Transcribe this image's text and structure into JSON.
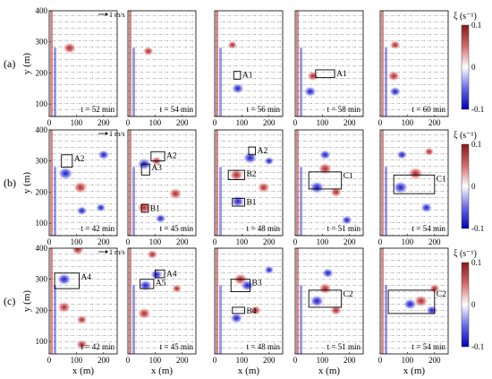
{
  "figure": {
    "row_labels": [
      "(a)",
      "(b)",
      "(c)"
    ],
    "colorbar": {
      "label": "ξ (s⁻¹)",
      "ticks": [
        "0.1",
        "0",
        "-0.1"
      ],
      "min": -0.1,
      "max": 0.1,
      "colors": {
        "positive": "#a8202a",
        "zero": "#ffffff",
        "negative": "#1414c8"
      }
    },
    "scale_label": "1 m/s"
  },
  "chart_data": [
    {
      "type": "heatmap",
      "row": "(a)",
      "ylabel": "y (m)",
      "xlabel": "",
      "x_ticks": [
        "0",
        "100",
        "200"
      ],
      "y_ticks": [
        "100",
        "200",
        "300",
        "400"
      ],
      "xlim": [
        0,
        250
      ],
      "ylim": [
        60,
        400
      ],
      "scale_label": "1 m/s",
      "panels": [
        {
          "time": "t = 52 min",
          "boxes": []
        },
        {
          "time": "t = 54 min",
          "boxes": []
        },
        {
          "time": "t = 56 min",
          "boxes": [
            {
              "label": "A1",
              "x": [
                70,
                95
              ],
              "y": [
                180,
                205
              ]
            }
          ]
        },
        {
          "time": "t = 58 min",
          "boxes": [
            {
              "label": "A1",
              "x": [
                75,
                145
              ],
              "y": [
                185,
                210
              ]
            }
          ]
        },
        {
          "time": "t = 60 min",
          "boxes": []
        }
      ],
      "vortices": [
        [
          {
            "x": 75,
            "y": 280,
            "s": 0.8
          }
        ],
        [
          {
            "x": 75,
            "y": 270,
            "s": 0.5
          }
        ],
        [
          {
            "x": 65,
            "y": 290,
            "s": 0.4
          },
          {
            "x": 85,
            "y": 150,
            "s": -0.7
          }
        ],
        [
          {
            "x": 65,
            "y": 190,
            "s": 0.6
          },
          {
            "x": 55,
            "y": 140,
            "s": -0.7
          }
        ],
        [
          {
            "x": 50,
            "y": 190,
            "s": 0.7
          },
          {
            "x": 55,
            "y": 290,
            "s": 0.5
          },
          {
            "x": 55,
            "y": 140,
            "s": -0.6
          }
        ]
      ]
    },
    {
      "type": "heatmap",
      "row": "(b)",
      "ylabel": "y (m)",
      "xlabel": "",
      "x_ticks": [
        "0",
        "100",
        "200"
      ],
      "y_ticks": [
        "100",
        "200",
        "300",
        "400"
      ],
      "xlim": [
        0,
        250
      ],
      "ylim": [
        60,
        400
      ],
      "scale_label": "1 m/s",
      "panels": [
        {
          "time": "t = 42 min",
          "boxes": [
            {
              "label": "A2",
              "x": [
                45,
                85
              ],
              "y": [
                280,
                320
              ]
            }
          ]
        },
        {
          "time": "t = 45 min",
          "boxes": [
            {
              "label": "A2",
              "x": [
                85,
                135
              ],
              "y": [
                300,
                330
              ]
            },
            {
              "label": "A3",
              "x": [
                50,
                80
              ],
              "y": [
                255,
                290
              ]
            },
            {
              "label": "B1",
              "x": [
                50,
                75
              ],
              "y": [
                135,
                160
              ]
            }
          ]
        },
        {
          "time": "t = 48 min",
          "boxes": [
            {
              "label": "A2",
              "x": [
                125,
                150
              ],
              "y": [
                320,
                345
              ]
            },
            {
              "label": "B2",
              "x": [
                50,
                110
              ],
              "y": [
                240,
                270
              ]
            },
            {
              "label": "B1",
              "x": [
                65,
                110
              ],
              "y": [
                155,
                180
              ]
            }
          ]
        },
        {
          "time": "t = 51 min",
          "boxes": [
            {
              "label": "C1",
              "x": [
                50,
                170
              ],
              "y": [
                210,
                265
              ]
            }
          ]
        },
        {
          "time": "t = 54 min",
          "boxes": [
            {
              "label": "C1",
              "x": [
                50,
                200
              ],
              "y": [
                195,
                255
              ]
            }
          ]
        }
      ],
      "vortices": [
        [
          {
            "x": 60,
            "y": 260,
            "s": -1
          },
          {
            "x": 115,
            "y": 215,
            "s": 0.9
          },
          {
            "x": 200,
            "y": 320,
            "s": -0.6
          },
          {
            "x": 120,
            "y": 140,
            "s": -0.5
          },
          {
            "x": 190,
            "y": 150,
            "s": -0.4
          }
        ],
        [
          {
            "x": 60,
            "y": 290,
            "s": -0.9
          },
          {
            "x": 105,
            "y": 300,
            "s": 0.5
          },
          {
            "x": 60,
            "y": 150,
            "s": 0.9
          },
          {
            "x": 175,
            "y": 195,
            "s": 0.8
          },
          {
            "x": 120,
            "y": 115,
            "s": -0.5
          }
        ],
        [
          {
            "x": 80,
            "y": 255,
            "s": 0.9
          },
          {
            "x": 130,
            "y": 310,
            "s": -0.9
          },
          {
            "x": 85,
            "y": 170,
            "s": -0.8
          },
          {
            "x": 180,
            "y": 215,
            "s": 0.7
          },
          {
            "x": 200,
            "y": 300,
            "s": -0.4
          }
        ],
        [
          {
            "x": 110,
            "y": 275,
            "s": 0.9
          },
          {
            "x": 80,
            "y": 215,
            "s": -1
          },
          {
            "x": 150,
            "y": 200,
            "s": 0.6
          },
          {
            "x": 110,
            "y": 320,
            "s": -0.6
          },
          {
            "x": 190,
            "y": 110,
            "s": -0.5
          }
        ],
        [
          {
            "x": 130,
            "y": 260,
            "s": 1
          },
          {
            "x": 75,
            "y": 215,
            "s": -1
          },
          {
            "x": 170,
            "y": 150,
            "s": -0.6
          },
          {
            "x": 80,
            "y": 320,
            "s": -0.5
          },
          {
            "x": 180,
            "y": 330,
            "s": 0.4
          }
        ]
      ]
    },
    {
      "type": "heatmap",
      "row": "(c)",
      "ylabel": "y (m)",
      "xlabel": "x (m)",
      "x_ticks": [
        "0",
        "100",
        "200"
      ],
      "y_ticks": [
        "100",
        "200",
        "300",
        "400"
      ],
      "xlim": [
        0,
        250
      ],
      "ylim": [
        60,
        400
      ],
      "scale_label": "1 m/s",
      "panels": [
        {
          "time": "t = 42 min",
          "boxes": [
            {
              "label": "A4",
              "x": [
                20,
                110
              ],
              "y": [
                270,
                320
              ]
            }
          ]
        },
        {
          "time": "t = 45 min",
          "boxes": [
            {
              "label": "A4",
              "x": [
                100,
                135
              ],
              "y": [
                305,
                330
              ]
            },
            {
              "label": "A5",
              "x": [
                45,
                95
              ],
              "y": [
                270,
                300
              ]
            }
          ]
        },
        {
          "time": "t = 48 min",
          "boxes": [
            {
              "label": "B3",
              "x": [
                60,
                130
              ],
              "y": [
                260,
                300
              ]
            },
            {
              "label": "B4",
              "x": [
                65,
                110
              ],
              "y": [
                190,
                210
              ]
            }
          ]
        },
        {
          "time": "t = 51 min",
          "boxes": [
            {
              "label": "C2",
              "x": [
                50,
                170
              ],
              "y": [
                210,
                265
              ]
            }
          ]
        },
        {
          "time": "t = 54 min",
          "boxes": [
            {
              "label": "C2",
              "x": [
                30,
                200
              ],
              "y": [
                190,
                265
              ]
            }
          ]
        }
      ],
      "vortices": [
        [
          {
            "x": 55,
            "y": 300,
            "s": -0.9
          },
          {
            "x": 105,
            "y": 395,
            "s": 0.7
          },
          {
            "x": 55,
            "y": 210,
            "s": 0.8
          },
          {
            "x": 120,
            "y": 170,
            "s": 0.5
          },
          {
            "x": 120,
            "y": 90,
            "s": 0.6
          }
        ],
        [
          {
            "x": 65,
            "y": 280,
            "s": -0.8
          },
          {
            "x": 105,
            "y": 315,
            "s": -0.7
          },
          {
            "x": 60,
            "y": 190,
            "s": 0.8
          },
          {
            "x": 180,
            "y": 270,
            "s": 0.4
          },
          {
            "x": 90,
            "y": 380,
            "s": 0.5
          }
        ],
        [
          {
            "x": 95,
            "y": 300,
            "s": 0.9
          },
          {
            "x": 120,
            "y": 280,
            "s": -0.8
          },
          {
            "x": 80,
            "y": 175,
            "s": -0.7
          },
          {
            "x": 150,
            "y": 200,
            "s": 0.6
          },
          {
            "x": 200,
            "y": 330,
            "s": -0.4
          }
        ],
        [
          {
            "x": 110,
            "y": 270,
            "s": 0.8
          },
          {
            "x": 80,
            "y": 230,
            "s": -0.9
          },
          {
            "x": 150,
            "y": 200,
            "s": 0.6
          },
          {
            "x": 120,
            "y": 320,
            "s": -0.6
          }
        ],
        [
          {
            "x": 150,
            "y": 230,
            "s": 0.9
          },
          {
            "x": 110,
            "y": 220,
            "s": -0.8
          },
          {
            "x": 190,
            "y": 200,
            "s": -0.6
          },
          {
            "x": 200,
            "y": 270,
            "s": 0.5
          }
        ]
      ]
    }
  ]
}
